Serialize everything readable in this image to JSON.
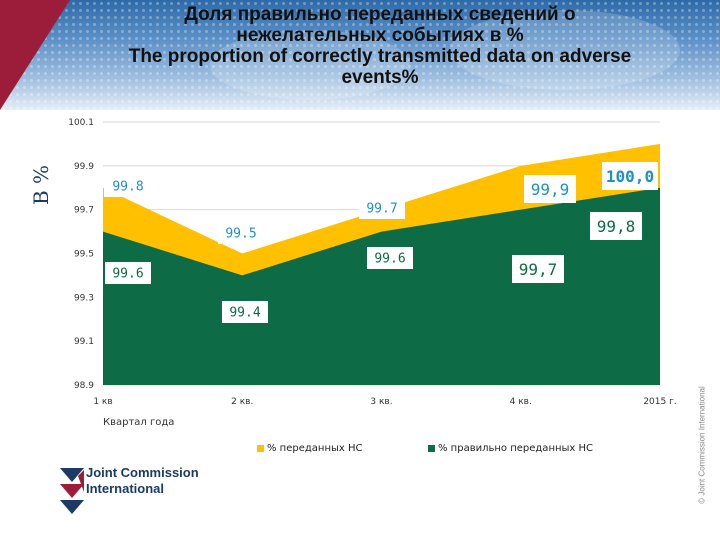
{
  "header": {
    "title_ru_line1": "Доля правильно переданных сведений о",
    "title_ru_line2": "нежелательных событиях в %",
    "title_en_line1": "The proportion of correctly transmitted data on adverse",
    "title_en_line2": "events%"
  },
  "y_axis_label": "В %",
  "chart_data": {
    "type": "area",
    "title": "Доля правильно переданных сведений о нежелательных событиях в % / The proportion of correctly transmitted data on adverse events%",
    "xlabel": "Квартал года",
    "ylabel": "В %",
    "categories": [
      "1 кв",
      "2 кв.",
      "3 кв.",
      "4 кв.",
      "2015 г."
    ],
    "ylim": [
      98.9,
      100.1
    ],
    "y_ticks": [
      "100.1",
      "99.9",
      "99.7",
      "99.5",
      "99.3",
      "99.1",
      "98.9"
    ],
    "series": [
      {
        "name": "% переданных НС",
        "color": "#ffc000",
        "values": [
          99.8,
          99.5,
          99.7,
          99.9,
          100.0
        ],
        "labels": [
          "99.8",
          "99.5",
          "99.7",
          "99,9",
          "100,0"
        ]
      },
      {
        "name": "% правильно переданных НС",
        "color": "#0d6b46",
        "values": [
          99.6,
          99.4,
          99.6,
          99.7,
          99.8
        ],
        "labels": [
          "99.6",
          "99.4",
          "99.6",
          "99,7",
          "99,8"
        ]
      }
    ],
    "legend_position": "bottom",
    "grid": true
  },
  "logo": {
    "line1": "Joint Commission",
    "line2": "International"
  },
  "copyright": "© Joint Commission International",
  "colors": {
    "header_accent": "#9b1d3a",
    "label_blue": "#1f8fc8"
  }
}
